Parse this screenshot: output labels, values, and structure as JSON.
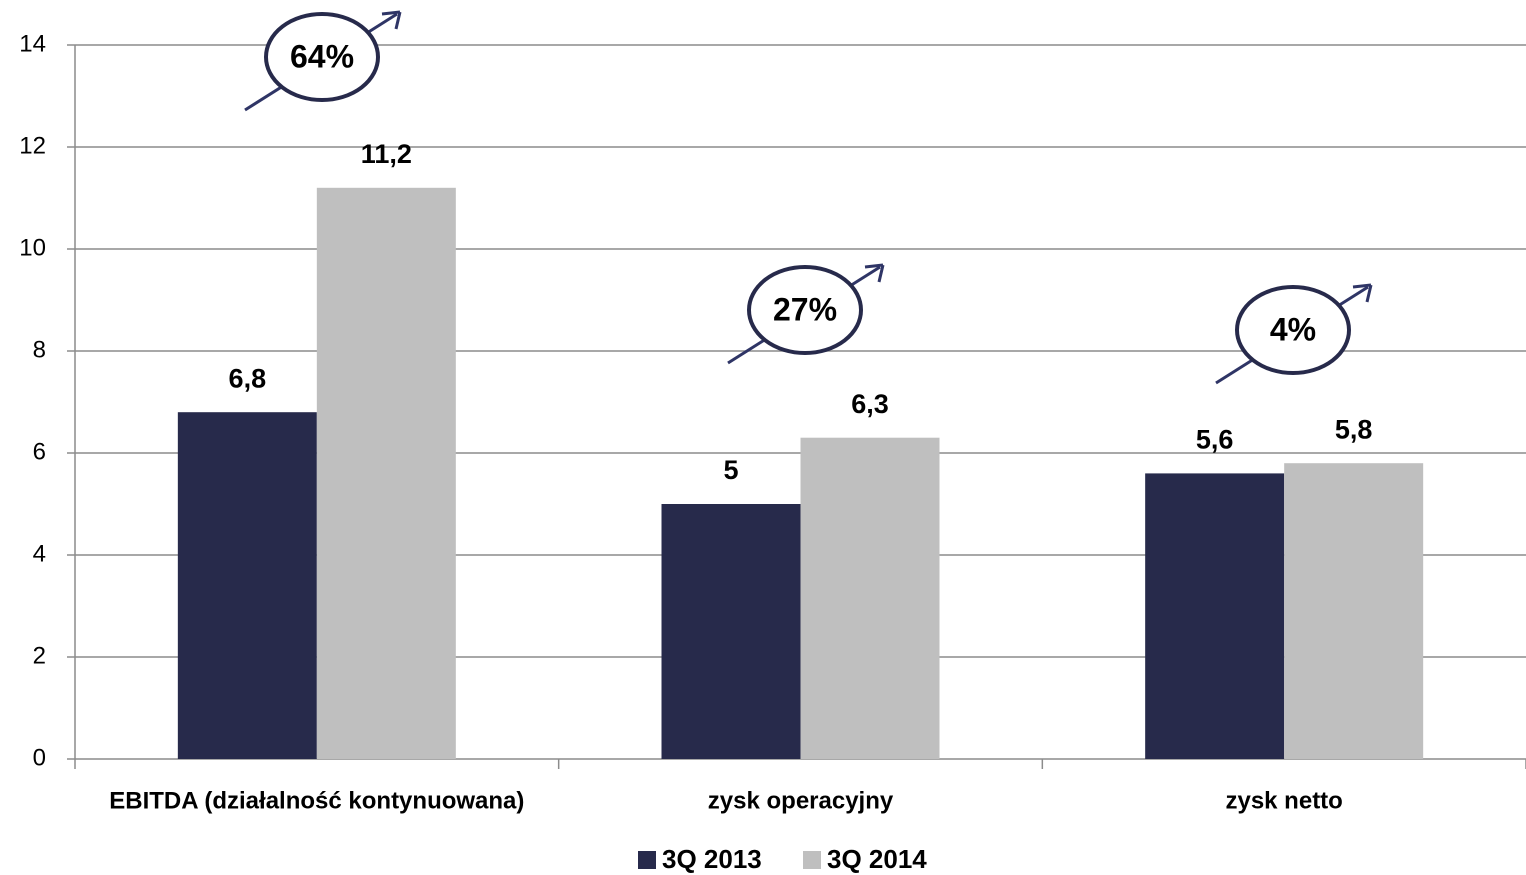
{
  "chart_data": {
    "type": "bar",
    "categories": [
      "EBITDA (działalność kontynuowana)",
      "zysk operacyjny",
      "zysk netto"
    ],
    "series": [
      {
        "name": "3Q 2013",
        "color": "#272a4b",
        "values": [
          6.8,
          5,
          5.6
        ],
        "value_labels": [
          "6,8",
          "5",
          "5,6"
        ]
      },
      {
        "name": "3Q 2014",
        "color": "#bfbfbf",
        "values": [
          11.2,
          6.3,
          5.8
        ],
        "value_labels": [
          "11,2",
          "6,3",
          "5,8"
        ]
      }
    ],
    "annotations": [
      "64%",
      "27%",
      "4%"
    ],
    "ylim": [
      0,
      14
    ],
    "yticks": [
      0,
      2,
      4,
      6,
      8,
      10,
      12,
      14
    ],
    "grid": true,
    "legend": "bottom"
  }
}
